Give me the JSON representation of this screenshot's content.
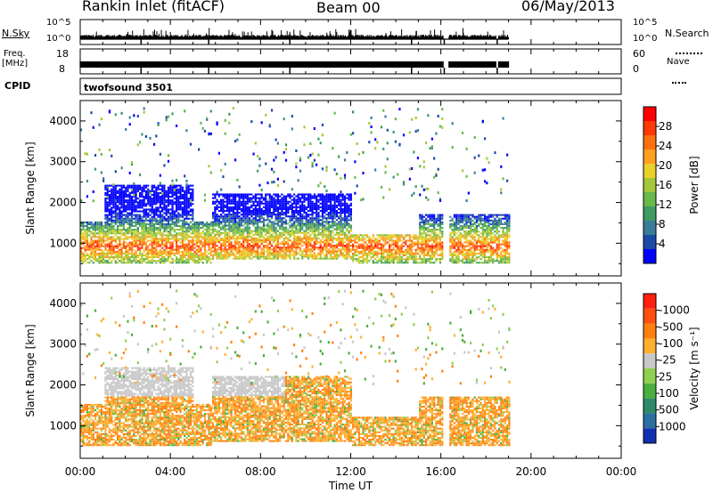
{
  "header": {
    "title": "Rankin Inlet (fitACF)",
    "beam": "Beam 00",
    "date": "06/May/2013"
  },
  "nsky": {
    "left_label": "N.Sky",
    "left_ticks": [
      "10^5",
      "10^0"
    ],
    "right_ticks": [
      "10^5",
      "10^0"
    ],
    "right_label": "N.Search"
  },
  "freq": {
    "left_label_1": "Freq.",
    "left_label_2": "[MHz]",
    "left_ticks": [
      "18",
      "8"
    ],
    "right_ticks": [
      "60",
      "0"
    ],
    "right_label": "Nave"
  },
  "cpid": {
    "label": "CPID",
    "value": "twofsound 3501"
  },
  "chart_data": [
    {
      "type": "heatmap",
      "name": "power",
      "ylabel": "Slant Range [km]",
      "xlabel": "Time UT",
      "xlim_hours": [
        0,
        24
      ],
      "ylim_km": [
        200,
        4500
      ],
      "y_ticks": [
        1000,
        2000,
        3000,
        4000
      ],
      "x_tick_labels": [
        "00:00",
        "04:00",
        "08:00",
        "12:00",
        "16:00",
        "20:00",
        "00:00"
      ],
      "data_extent_hours": [
        0,
        19
      ],
      "colorbar": {
        "label": "Power [dB]",
        "ticks": [
          "4",
          "8",
          "12",
          "16",
          "20",
          "24",
          "28"
        ],
        "colors": [
          "#0000ff",
          "#1c4aa8",
          "#3b7d99",
          "#3f9a63",
          "#68b84a",
          "#a4c83a",
          "#e8d22a",
          "#ffa020",
          "#ff7010",
          "#ff3808",
          "#ff0000"
        ]
      }
    },
    {
      "type": "heatmap",
      "name": "velocity",
      "ylabel": "Slant Range [km]",
      "xlabel": "Time UT",
      "xlim_hours": [
        0,
        24
      ],
      "ylim_km": [
        200,
        4500
      ],
      "y_ticks": [
        1000,
        2000,
        3000,
        4000
      ],
      "x_tick_labels": [
        "00:00",
        "04:00",
        "08:00",
        "12:00",
        "16:00",
        "20:00",
        "00:00"
      ],
      "data_extent_hours": [
        0,
        19
      ],
      "colorbar": {
        "label": "Velocity [m s⁻¹]",
        "ticks": [
          "1000",
          "500",
          "100",
          "25",
          "-25",
          "-100",
          "-500",
          "-1000"
        ],
        "colors": [
          "#1030b0",
          "#2a6fa0",
          "#2d8a68",
          "#4bae3e",
          "#8fd050",
          "#c8c8c8",
          "#ffb030",
          "#ff8010",
          "#ff5010",
          "#ff2010"
        ]
      }
    }
  ]
}
